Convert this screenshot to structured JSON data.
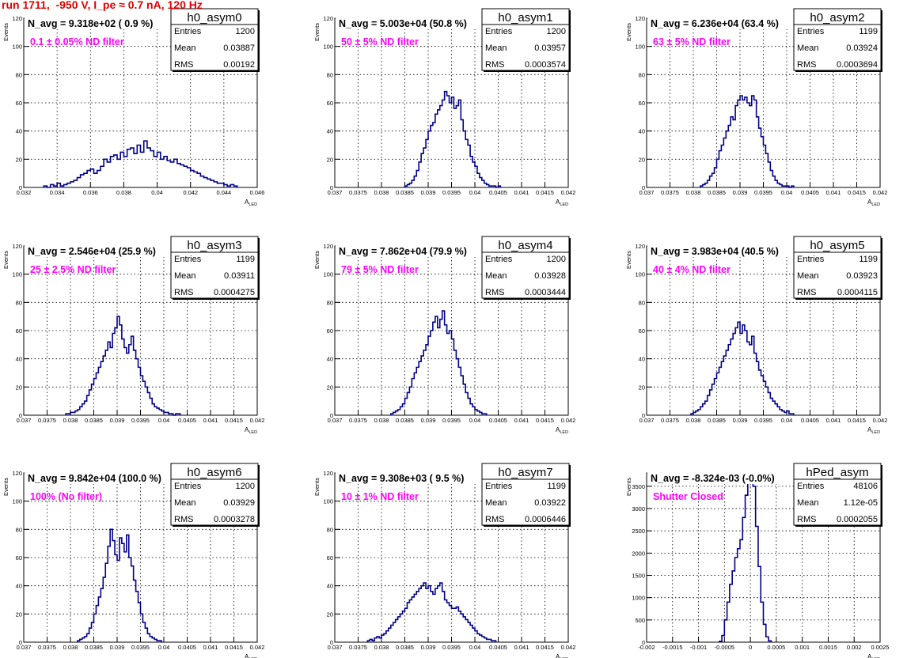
{
  "page_title": "run 1711,  -950 V, I_pe ≈ 0.7 nA, 120 Hz",
  "colors": {
    "histogram": "#00008b",
    "note": "#ff00ff",
    "title": "#e00000",
    "grid": "#000000"
  },
  "stat_labels": {
    "entries": "Entries",
    "mean": "Mean",
    "rms": "RMS"
  },
  "chart_data": [
    {
      "type": "histogram",
      "name": "h0_asym0",
      "title": "N_avg = 9.318e+02 ( 0.9 %)",
      "note": "0.1 ± 0.05% ND filter",
      "xlabel": "A_LED",
      "ylabel": "Events",
      "xlim": [
        0.032,
        0.046
      ],
      "ylim": [
        0,
        120
      ],
      "xticks": [
        "0.032",
        "0.034",
        "0.036",
        "0.038",
        "0.04",
        "0.042",
        "0.044",
        "0.046"
      ],
      "yticks": [
        "0",
        "20",
        "40",
        "60",
        "80",
        "100",
        "120"
      ],
      "stats": {
        "entries": "1200",
        "mean": "0.03887",
        "rms": "0.00192"
      },
      "bin_start": 0.0332,
      "bin_width": 0.0002,
      "counts": [
        1,
        0,
        2,
        1,
        3,
        1,
        2,
        3,
        4,
        5,
        7,
        9,
        10,
        12,
        13,
        10,
        12,
        15,
        20,
        18,
        22,
        23,
        20,
        25,
        22,
        27,
        28,
        24,
        30,
        25,
        33,
        28,
        26,
        22,
        25,
        20,
        22,
        19,
        18,
        20,
        17,
        16,
        15,
        14,
        12,
        11,
        10,
        8,
        7,
        6,
        5,
        4,
        3,
        3,
        2,
        1,
        2,
        1
      ]
    },
    {
      "type": "histogram",
      "name": "h0_asym1",
      "title": "N_avg = 5.003e+04 (50.8 %)",
      "note": "50 ± 5% ND filter",
      "xlabel": "A_LED",
      "ylabel": "Events",
      "xlim": [
        0.037,
        0.042
      ],
      "ylim": [
        0,
        120
      ],
      "xticks": [
        "0.037",
        "0.0375",
        "0.038",
        "0.0385",
        "0.039",
        "0.0395",
        "0.04",
        "0.0405",
        "0.041",
        "0.0415",
        "0.042"
      ],
      "yticks": [
        "0",
        "20",
        "40",
        "60",
        "80",
        "100",
        "120"
      ],
      "stats": {
        "entries": "1200",
        "mean": "0.03957",
        "rms": "0.0003574"
      },
      "bin_start": 0.0385,
      "bin_width": 5e-05,
      "counts": [
        1,
        2,
        3,
        5,
        8,
        12,
        18,
        24,
        28,
        34,
        40,
        44,
        46,
        52,
        55,
        58,
        62,
        68,
        65,
        60,
        64,
        56,
        58,
        62,
        48,
        40,
        34,
        30,
        22,
        18,
        15,
        10,
        7,
        5,
        3,
        2,
        1,
        1,
        1,
        0,
        1
      ]
    },
    {
      "type": "histogram",
      "name": "h0_asym2",
      "title": "N_avg = 6.236e+04 (63.4 %)",
      "note": "63 ± 5% ND filter",
      "xlabel": "A_LED",
      "ylabel": "Events",
      "xlim": [
        0.037,
        0.042
      ],
      "ylim": [
        0,
        120
      ],
      "xticks": [
        "0.037",
        "0.0375",
        "0.038",
        "0.0385",
        "0.039",
        "0.0395",
        "0.04",
        "0.0405",
        "0.041",
        "0.0415",
        "0.042"
      ],
      "yticks": [
        "0",
        "20",
        "40",
        "60",
        "80",
        "100",
        "120"
      ],
      "stats": {
        "entries": "1199",
        "mean": "0.03924",
        "rms": "0.0003694"
      },
      "bin_start": 0.03815,
      "bin_width": 5e-05,
      "counts": [
        1,
        2,
        3,
        5,
        8,
        10,
        14,
        20,
        26,
        30,
        35,
        40,
        44,
        50,
        48,
        58,
        62,
        65,
        62,
        64,
        60,
        58,
        65,
        62,
        50,
        42,
        36,
        30,
        24,
        18,
        12,
        8,
        5,
        3,
        2,
        1,
        1,
        1,
        0,
        1
      ]
    },
    {
      "type": "histogram",
      "name": "h0_asym3",
      "title": "N_avg = 2.546e+04 (25.9 %)",
      "note": "25 ± 2.5% ND filter",
      "xlabel": "A_LED",
      "ylabel": "Events",
      "xlim": [
        0.037,
        0.042
      ],
      "ylim": [
        0,
        120
      ],
      "xticks": [
        "0.037",
        "0.0375",
        "0.038",
        "0.0385",
        "0.039",
        "0.0395",
        "0.04",
        "0.0405",
        "0.041",
        "0.0415",
        "0.042"
      ],
      "yticks": [
        "0",
        "20",
        "40",
        "60",
        "80",
        "100",
        "120"
      ],
      "stats": {
        "entries": "1199",
        "mean": "0.03911",
        "rms": "0.0004275"
      },
      "bin_start": 0.0379,
      "bin_width": 5e-05,
      "counts": [
        1,
        1,
        2,
        2,
        3,
        4,
        6,
        8,
        10,
        14,
        18,
        22,
        26,
        30,
        34,
        38,
        42,
        46,
        52,
        48,
        58,
        62,
        70,
        64,
        54,
        48,
        44,
        50,
        56,
        46,
        40,
        34,
        28,
        24,
        20,
        16,
        12,
        8,
        6,
        5,
        4,
        3,
        2,
        2,
        1,
        1,
        0,
        1,
        1
      ]
    },
    {
      "type": "histogram",
      "name": "h0_asym4",
      "title": "N_avg = 7.862e+04 (79.9 %)",
      "note": "79 ± 5% ND filter",
      "xlabel": "A_LED",
      "ylabel": "Events",
      "xlim": [
        0.037,
        0.042
      ],
      "ylim": [
        0,
        120
      ],
      "xticks": [
        "0.037",
        "0.0375",
        "0.038",
        "0.0385",
        "0.039",
        "0.0395",
        "0.04",
        "0.0405",
        "0.041",
        "0.0415",
        "0.042"
      ],
      "yticks": [
        "0",
        "20",
        "40",
        "60",
        "80",
        "100",
        "120"
      ],
      "stats": {
        "entries": "1200",
        "mean": "0.03928",
        "rms": "0.0003444"
      },
      "bin_start": 0.0382,
      "bin_width": 5e-05,
      "counts": [
        1,
        2,
        3,
        4,
        6,
        8,
        12,
        16,
        20,
        26,
        30,
        34,
        38,
        42,
        46,
        50,
        56,
        60,
        66,
        70,
        62,
        68,
        74,
        64,
        58,
        60,
        54,
        46,
        40,
        34,
        28,
        22,
        16,
        12,
        8,
        6,
        4,
        3,
        2,
        1,
        1
      ]
    },
    {
      "type": "histogram",
      "name": "h0_asym5",
      "title": "N_avg = 3.983e+04 (40.5 %)",
      "note": "40 ± 4% ND filter",
      "xlabel": "A_LED",
      "ylabel": "Events",
      "xlim": [
        0.037,
        0.042
      ],
      "ylim": [
        0,
        120
      ],
      "xticks": [
        "0.037",
        "0.0375",
        "0.038",
        "0.0385",
        "0.039",
        "0.0395",
        "0.04",
        "0.0405",
        "0.041",
        "0.0415",
        "0.042"
      ],
      "yticks": [
        "0",
        "20",
        "40",
        "60",
        "80",
        "100",
        "120"
      ],
      "stats": {
        "entries": "1199",
        "mean": "0.03923",
        "rms": "0.0004115"
      },
      "bin_start": 0.03795,
      "bin_width": 5e-05,
      "counts": [
        1,
        2,
        3,
        4,
        6,
        8,
        10,
        14,
        18,
        22,
        26,
        30,
        34,
        38,
        42,
        46,
        50,
        54,
        58,
        62,
        66,
        58,
        64,
        60,
        52,
        50,
        56,
        44,
        38,
        32,
        28,
        24,
        20,
        16,
        12,
        10,
        8,
        6,
        4,
        3,
        2,
        3,
        1,
        1
      ]
    },
    {
      "type": "histogram",
      "name": "h0_asym6",
      "title": "N_avg = 9.842e+04 (100.0 %)",
      "note": "100% (No filter)",
      "xlabel": "A_LED",
      "ylabel": "Events",
      "xlim": [
        0.037,
        0.042
      ],
      "ylim": [
        0,
        120
      ],
      "xticks": [
        "0.037",
        "0.0375",
        "0.038",
        "0.0385",
        "0.039",
        "0.0395",
        "0.04",
        "0.0405",
        "0.041",
        "0.0415",
        "0.042"
      ],
      "yticks": [
        "0",
        "20",
        "40",
        "60",
        "80",
        "100",
        "120"
      ],
      "stats": {
        "entries": "1200",
        "mean": "0.03929",
        "rms": "0.0003278"
      },
      "bin_start": 0.03815,
      "bin_width": 5e-05,
      "counts": [
        1,
        2,
        3,
        4,
        6,
        10,
        14,
        20,
        26,
        32,
        38,
        46,
        56,
        68,
        80,
        72,
        62,
        58,
        74,
        70,
        64,
        76,
        60,
        54,
        44,
        36,
        28,
        20,
        14,
        10,
        6,
        4,
        3,
        2,
        1,
        1
      ]
    },
    {
      "type": "histogram",
      "name": "h0_asym7",
      "title": "N_avg = 9.308e+03 ( 9.5 %)",
      "note": "10 ± 1% ND filter",
      "xlabel": "A_LED",
      "ylabel": "Events",
      "xlim": [
        0.037,
        0.042
      ],
      "ylim": [
        0,
        120
      ],
      "xticks": [
        "0.037",
        "0.0375",
        "0.038",
        "0.0385",
        "0.039",
        "0.0395",
        "0.04",
        "0.0405",
        "0.041",
        "0.0415",
        "0.042"
      ],
      "yticks": [
        "0",
        "20",
        "40",
        "60",
        "80",
        "100",
        "120"
      ],
      "stats": {
        "entries": "1199",
        "mean": "0.03922",
        "rms": "0.0006446"
      },
      "bin_start": 0.0377,
      "bin_width": 5e-05,
      "counts": [
        1,
        2,
        1,
        3,
        4,
        3,
        5,
        6,
        8,
        10,
        12,
        14,
        16,
        18,
        20,
        22,
        24,
        28,
        30,
        32,
        34,
        36,
        38,
        40,
        42,
        38,
        40,
        36,
        34,
        38,
        40,
        42,
        36,
        30,
        28,
        26,
        24,
        24,
        25,
        22,
        20,
        18,
        16,
        14,
        12,
        10,
        8,
        6,
        5,
        4,
        3,
        2,
        2,
        1,
        1
      ]
    },
    {
      "type": "histogram",
      "name": "hPed_asym",
      "title": "N_avg = -8.324e-03 (-0.0%)",
      "note": "Shutter Closed",
      "xlabel": "A_LED",
      "ylabel": "Events",
      "xlim": [
        -0.002,
        0.0025
      ],
      "ylim": [
        0,
        3800
      ],
      "xticks": [
        "-0.002",
        "-0.0015",
        "-0.001",
        "-0.0005",
        "0",
        "0.0005",
        "0.001",
        "0.0015",
        "0.002",
        "0.0025"
      ],
      "yticks": [
        "0",
        "500",
        "1000",
        "1500",
        "2000",
        "2500",
        "3000",
        "3500"
      ],
      "stats": {
        "entries": "48106",
        "mean": "1.12e-05",
        "rms": "0.0002055"
      },
      "bin_start": -0.0006,
      "bin_width": 5e-05,
      "counts": [
        20,
        150,
        500,
        900,
        1300,
        1600,
        1900,
        2100,
        2300,
        2800,
        3300,
        3700,
        3800,
        3500,
        2600,
        1700,
        900,
        400,
        120,
        30
      ]
    }
  ]
}
